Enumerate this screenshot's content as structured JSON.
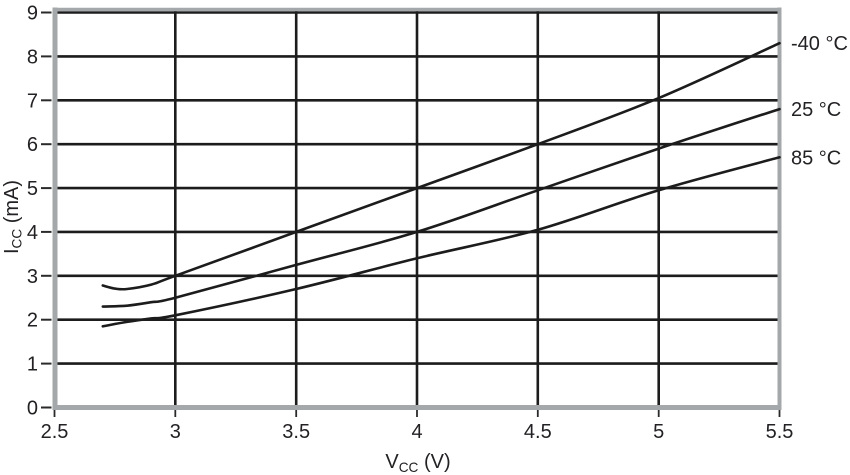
{
  "figure": {
    "x_axis_title": {
      "main": "V",
      "sub": "CC",
      "unit": " (V)"
    },
    "y_axis_title": {
      "main": "I",
      "sub": "CC",
      "unit": " (mA)"
    }
  },
  "chart_data": {
    "type": "line",
    "title": "",
    "xlabel": "VCC (V)",
    "ylabel": "ICC (mA)",
    "xlim": [
      2.5,
      5.5
    ],
    "ylim": [
      0,
      9
    ],
    "x_ticks": [
      2.5,
      3,
      3.5,
      4,
      4.5,
      5,
      5.5
    ],
    "x_tick_labels": [
      "2.5",
      "3",
      "3.5",
      "4",
      "4.5",
      "5",
      "5.5"
    ],
    "y_ticks": [
      0,
      1,
      2,
      3,
      4,
      5,
      6,
      7,
      8,
      9
    ],
    "y_tick_labels": [
      "0",
      "1",
      "2",
      "3",
      "4",
      "5",
      "6",
      "7",
      "8",
      "9"
    ],
    "grid": "both",
    "legend_position": "right of plot, aligned with line ends",
    "series": [
      {
        "name": "-40 °C",
        "points": [
          [
            2.7,
            2.78
          ],
          [
            2.75,
            2.71
          ],
          [
            2.8,
            2.7
          ],
          [
            2.9,
            2.8
          ],
          [
            3.0,
            3.0
          ],
          [
            3.5,
            4.0
          ],
          [
            4.0,
            5.0
          ],
          [
            4.5,
            6.0
          ],
          [
            5.0,
            7.05
          ],
          [
            5.5,
            8.3
          ]
        ]
      },
      {
        "name": "25 °C",
        "points": [
          [
            2.7,
            2.3
          ],
          [
            2.8,
            2.32
          ],
          [
            2.9,
            2.4
          ],
          [
            3.0,
            2.5
          ],
          [
            3.5,
            3.25
          ],
          [
            4.0,
            4.0
          ],
          [
            4.5,
            4.95
          ],
          [
            5.0,
            5.9
          ],
          [
            5.5,
            6.8
          ]
        ]
      },
      {
        "name": "85 °C",
        "points": [
          [
            2.7,
            1.85
          ],
          [
            2.8,
            1.95
          ],
          [
            2.9,
            2.03
          ],
          [
            3.0,
            2.1
          ],
          [
            3.5,
            2.7
          ],
          [
            4.0,
            3.4
          ],
          [
            4.5,
            4.05
          ],
          [
            5.0,
            4.95
          ],
          [
            5.5,
            5.7
          ]
        ]
      }
    ],
    "colors": {
      "line": "#1c1c1c",
      "grid": "#1c1c1c",
      "frame": "#a5a8aa",
      "text": "#232124"
    }
  }
}
